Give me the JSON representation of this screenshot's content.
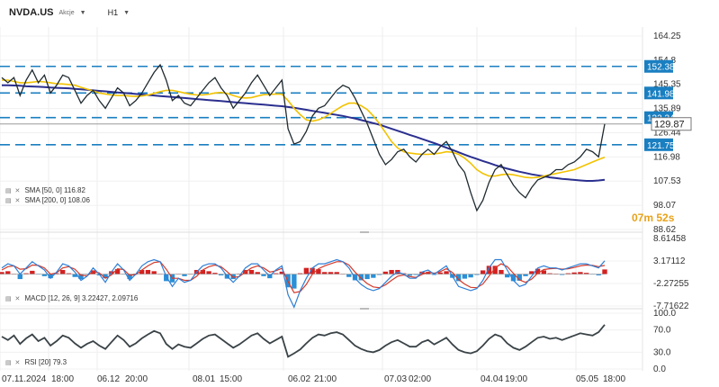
{
  "header": {
    "symbol": "NVDA.US",
    "subtitle": "Akcje",
    "timeframe": "H1"
  },
  "countdown": {
    "minutes": "07",
    "min_unit": "m",
    "seconds": "52",
    "sec_unit": "s"
  },
  "colors": {
    "price": "#1f2a30",
    "sma50": "#f2c200",
    "sma200": "#2b2f8f",
    "level": "#1a7fc1",
    "last": "#9a9a9a",
    "macd": "#2f7fd6",
    "signal": "#d43a2a",
    "hist_pos": "#d42020",
    "hist_neg": "#2a8fd6",
    "rsi": "#3a4347",
    "label_bg": "#1a7fc1"
  },
  "indicators": {
    "sma50_label": "SMA [50, 0] 116.82",
    "sma200_label": "SMA [200, 0] 108.06",
    "macd_label": "MACD [12, 26, 9] 3.22427, 2.09716",
    "rsi_label": "RSI [20] 79.3"
  },
  "chart_data": [
    {
      "type": "line",
      "name": "price",
      "x_ticks": [
        "07.11.2024",
        "18:00",
        "06.12",
        "20:00",
        "08.01",
        "15:00",
        "06.02",
        "21:00",
        "07.03",
        "02:00",
        "04.04",
        "19:00",
        "05.05",
        "18:00"
      ],
      "y_ticks": [
        164.25,
        154.8,
        145.35,
        135.89,
        126.44,
        116.98,
        107.53,
        98.07,
        88.62
      ],
      "ylim": [
        88.62,
        164.25
      ],
      "horizontal_levels": [
        152.38,
        141.98,
        132.34,
        121.75
      ],
      "last_price": 129.87,
      "series": [
        {
          "name": "NVDA.US",
          "values": [
            148,
            146,
            148,
            141,
            147,
            151,
            146,
            149,
            142,
            145,
            149,
            148,
            143,
            138,
            141,
            143,
            139,
            136,
            140,
            144,
            142,
            137,
            139,
            142,
            146,
            150,
            153,
            147,
            139,
            141,
            138,
            137,
            140,
            143,
            146,
            148,
            144,
            141,
            136,
            139,
            142,
            146,
            149,
            145,
            141,
            144,
            147,
            128,
            122,
            123,
            127,
            133,
            136,
            137,
            140,
            143,
            145,
            144,
            140,
            135,
            130,
            124,
            118,
            114,
            116,
            119,
            120,
            117,
            115,
            118,
            120,
            118,
            121,
            123,
            119,
            114,
            111,
            103,
            96,
            100,
            107,
            112,
            114,
            110,
            106,
            103,
            101,
            105,
            108,
            109,
            110,
            112,
            112,
            114,
            115,
            117,
            120,
            119,
            117,
            129.87
          ]
        },
        {
          "name": "SMA 50",
          "values": [
            147,
            147,
            146.5,
            146,
            146,
            146.2,
            146.5,
            146.3,
            146,
            145.6,
            145.5,
            145.3,
            145,
            144.2,
            143.5,
            142.8,
            142,
            141.6,
            141.2,
            141,
            141,
            140.8,
            140.6,
            140.8,
            141.2,
            141.8,
            142.5,
            143,
            143,
            142.5,
            142,
            141.5,
            141.2,
            141.2,
            141.5,
            142,
            142.2,
            141.8,
            141,
            140.3,
            140,
            140.2,
            140.8,
            141.3,
            141.4,
            141.6,
            141.5,
            139,
            136,
            133.5,
            131.5,
            131,
            131.5,
            132.5,
            134,
            135.5,
            137,
            138,
            138,
            137,
            135.5,
            133,
            130,
            126.5,
            123,
            120.5,
            119,
            118.5,
            118.2,
            118,
            118,
            118.2,
            118.5,
            119,
            118.8,
            118,
            116.5,
            114.5,
            112,
            110.5,
            109.5,
            109.5,
            110,
            110.3,
            110,
            109.5,
            109,
            108.8,
            109,
            109.5,
            110,
            110.5,
            111,
            111.5,
            112,
            113,
            114,
            115,
            116,
            116.82
          ]
        },
        {
          "name": "SMA 200",
          "values": [
            145,
            145,
            144.9,
            144.8,
            144.6,
            144.5,
            144.4,
            144.3,
            144.1,
            144,
            143.9,
            143.8,
            143.6,
            143.4,
            143.2,
            143,
            142.8,
            142.6,
            142.4,
            142.2,
            142,
            141.8,
            141.6,
            141.4,
            141.2,
            141,
            140.8,
            140.6,
            140.4,
            140.2,
            140,
            139.8,
            139.6,
            139.4,
            139.2,
            139,
            138.8,
            138.6,
            138.4,
            138.2,
            138,
            137.8,
            137.6,
            137.4,
            137.2,
            137,
            136.8,
            136.5,
            136.2,
            135.8,
            135.4,
            135,
            134.6,
            134.2,
            133.8,
            133.4,
            133,
            132.5,
            132,
            131.4,
            130.8,
            130.2,
            129.6,
            128.8,
            128,
            127.2,
            126.4,
            125.6,
            124.8,
            124,
            123.2,
            122.4,
            121.5,
            120.6,
            119.7,
            118.8,
            117.9,
            117,
            116.2,
            115.4,
            114.6,
            113.8,
            113.1,
            112.4,
            111.8,
            111.2,
            110.7,
            110.2,
            109.8,
            109.4,
            109,
            108.7,
            108.4,
            108.2,
            108,
            107.8,
            107.6,
            107.6,
            107.8,
            108.06
          ]
        }
      ]
    },
    {
      "type": "line",
      "name": "MACD",
      "y_ticks": [
        8.61458,
        3.17112,
        -2.27255,
        -7.71622
      ],
      "ylim": [
        -7.71622,
        8.61458
      ],
      "series": [
        {
          "name": "MACD",
          "values": [
            1.5,
            2.5,
            2,
            0,
            1.5,
            3,
            2,
            1,
            -1,
            0.5,
            2.5,
            2,
            0.5,
            -1.5,
            -0.5,
            1.5,
            0,
            -2,
            0.5,
            2.5,
            1,
            -1.5,
            0,
            2,
            3,
            3.5,
            3,
            -0.5,
            -3,
            -1,
            -2,
            -1.5,
            0.5,
            2,
            2.5,
            2.5,
            1.5,
            -0.5,
            -2,
            -0.5,
            1.5,
            2.5,
            2.5,
            1,
            -0.5,
            1,
            2,
            -5,
            -8,
            -4,
            -1,
            1.5,
            2.5,
            2.5,
            3,
            3.5,
            3,
            1.5,
            -1,
            -2.5,
            -3.5,
            -4,
            -3.5,
            -2,
            -0.5,
            0.5,
            0,
            -1,
            -1,
            0.5,
            1,
            0,
            1,
            2,
            -0.5,
            -3,
            -3.5,
            -4,
            -3.5,
            -1.5,
            1.5,
            3.5,
            3.5,
            1,
            -1.5,
            -3,
            -2.5,
            -0.5,
            1.5,
            2,
            1.5,
            1.5,
            1,
            1.5,
            2,
            2.5,
            2.5,
            2,
            1.5,
            3.22427
          ]
        },
        {
          "name": "Signal",
          "values": [
            1,
            1.8,
            2,
            1.2,
            1.3,
            2.2,
            2.1,
            1.5,
            0,
            0.3,
            1.5,
            1.8,
            1.2,
            -0.3,
            -0.4,
            0.6,
            0.3,
            -1,
            -0.2,
            1.3,
            1.1,
            -0.3,
            -0.1,
            1,
            2,
            2.8,
            3,
            1.2,
            -1,
            -1,
            -1.5,
            -1.5,
            -0.5,
            1,
            1.8,
            2.2,
            1.8,
            0.6,
            -0.8,
            -0.6,
            0.5,
            1.5,
            2,
            1.5,
            0.5,
            0.8,
            1.4,
            -1.8,
            -4.5,
            -4.2,
            -2.5,
            0,
            1.3,
            2,
            2.5,
            3,
            3,
            2.2,
            0.5,
            -1,
            -2.3,
            -3.1,
            -3.3,
            -2.6,
            -1.5,
            -0.5,
            -0.2,
            -0.6,
            -0.8,
            -0.1,
            0.5,
            0.2,
            0.6,
            1.3,
            0.4,
            -1.3,
            -2.4,
            -3.2,
            -3.3,
            -2.4,
            -0.5,
            1.5,
            2.5,
            1.8,
            0.2,
            -1.4,
            -2,
            -1.2,
            0.2,
            1.1,
            1.3,
            1.4,
            1.2,
            1.3,
            1.6,
            2,
            2.2,
            2.1,
            1.8,
            2.09716
          ]
        }
      ]
    },
    {
      "type": "line",
      "name": "RSI",
      "y_ticks": [
        100.0,
        70.0,
        30.0,
        0.0
      ],
      "ylim": [
        0,
        100
      ],
      "series": [
        {
          "name": "RSI",
          "values": [
            58,
            52,
            60,
            45,
            55,
            62,
            50,
            56,
            42,
            50,
            60,
            56,
            46,
            38,
            45,
            50,
            42,
            36,
            48,
            60,
            52,
            40,
            46,
            55,
            62,
            68,
            64,
            45,
            36,
            44,
            40,
            38,
            46,
            54,
            60,
            62,
            54,
            46,
            38,
            44,
            52,
            60,
            64,
            54,
            46,
            52,
            58,
            22,
            28,
            35,
            46,
            56,
            62,
            60,
            64,
            66,
            62,
            52,
            42,
            36,
            32,
            30,
            34,
            42,
            48,
            52,
            46,
            40,
            40,
            48,
            52,
            44,
            50,
            56,
            44,
            34,
            30,
            28,
            32,
            42,
            54,
            62,
            58,
            46,
            38,
            34,
            40,
            48,
            56,
            58,
            54,
            56,
            52,
            56,
            60,
            64,
            62,
            60,
            66,
            79.3
          ]
        }
      ]
    }
  ]
}
